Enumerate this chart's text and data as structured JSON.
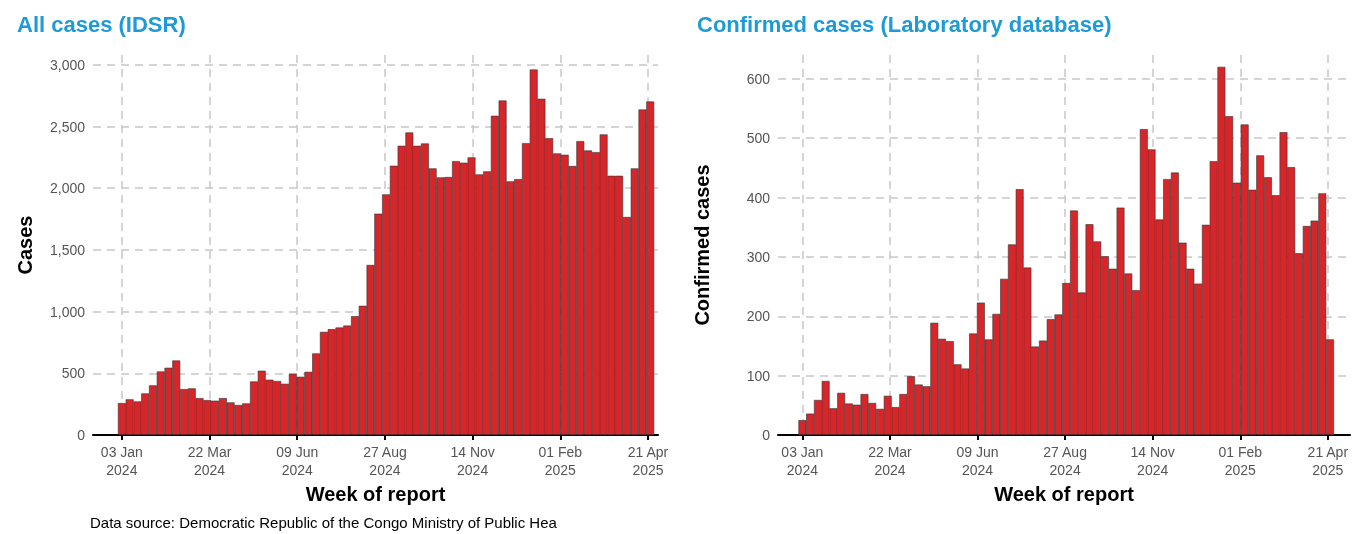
{
  "chart_data": [
    {
      "type": "bar",
      "title": "All cases (IDSR)",
      "xlabel": "Week of report",
      "ylabel": "Cases",
      "x": [
        "2024-01-03",
        "2024-01-10",
        "2024-01-17",
        "2024-01-24",
        "2024-01-31",
        "2024-02-07",
        "2024-02-14",
        "2024-02-21",
        "2024-02-28",
        "2024-03-06",
        "2024-03-13",
        "2024-03-20",
        "2024-03-27",
        "2024-04-03",
        "2024-04-10",
        "2024-04-17",
        "2024-04-24",
        "2024-05-01",
        "2024-05-08",
        "2024-05-15",
        "2024-05-22",
        "2024-05-29",
        "2024-06-05",
        "2024-06-12",
        "2024-06-19",
        "2024-06-26",
        "2024-07-03",
        "2024-07-10",
        "2024-07-17",
        "2024-07-24",
        "2024-07-31",
        "2024-08-07",
        "2024-08-14",
        "2024-08-21",
        "2024-08-28",
        "2024-09-04",
        "2024-09-11",
        "2024-09-18",
        "2024-09-25",
        "2024-10-02",
        "2024-10-09",
        "2024-10-16",
        "2024-10-23",
        "2024-10-30",
        "2024-11-06",
        "2024-11-13",
        "2024-11-20",
        "2024-11-27",
        "2024-12-04",
        "2024-12-11",
        "2024-12-18",
        "2024-12-25",
        "2025-01-01",
        "2025-01-08",
        "2025-01-15",
        "2025-01-22",
        "2025-01-29",
        "2025-02-05",
        "2025-02-12",
        "2025-02-19",
        "2025-02-26",
        "2025-03-05",
        "2025-03-12",
        "2025-03-19",
        "2025-03-26",
        "2025-04-02",
        "2025-04-09",
        "2025-04-16",
        "2025-04-23"
      ],
      "values": [
        259,
        289,
        272,
        337,
        402,
        515,
        545,
        604,
        372,
        378,
        299,
        283,
        278,
        299,
        264,
        243,
        256,
        434,
        521,
        448,
        437,
        415,
        496,
        472,
        512,
        661,
        836,
        858,
        871,
        887,
        963,
        1047,
        1378,
        1794,
        1950,
        2182,
        2344,
        2452,
        2344,
        2363,
        2161,
        2088,
        2091,
        2220,
        2207,
        2250,
        2112,
        2137,
        2587,
        2711,
        2056,
        2074,
        2366,
        2962,
        2725,
        2406,
        2282,
        2271,
        2180,
        2382,
        2306,
        2293,
        2436,
        2101,
        2101,
        1767,
        2161,
        2638,
        2703
      ],
      "color": "#d7262a",
      "xlim": [
        "2023-12-08",
        "2025-04-30"
      ],
      "xticks": [
        {
          "value": "2024-01-03",
          "label": "03 Jan\n2024"
        },
        {
          "value": "2024-03-22",
          "label": "22 Mar\n2024"
        },
        {
          "value": "2024-06-09",
          "label": "09 Jun\n2024"
        },
        {
          "value": "2024-08-27",
          "label": "27 Aug\n2024"
        },
        {
          "value": "2024-11-14",
          "label": "14 Nov\n2024"
        },
        {
          "value": "2025-02-01",
          "label": "01 Feb\n2025"
        },
        {
          "value": "2025-04-21",
          "label": "21 Apr\n2025"
        }
      ],
      "ylim": [
        0,
        3080
      ],
      "yticks": [
        0,
        500,
        {
          "value": 1000,
          "label": "1,000"
        },
        {
          "value": 1500,
          "label": "1,500"
        },
        {
          "value": 2000,
          "label": "2,000"
        },
        {
          "value": 2500,
          "label": "2,500"
        },
        {
          "value": 3000,
          "label": "3,000"
        }
      ],
      "grid": true,
      "annotations": [
        "Data source: Democratic Republic of the Congo Ministry of Public Hea"
      ]
    },
    {
      "type": "bar",
      "title": "Confirmed cases (Laboratory database)",
      "xlabel": "Week of report",
      "ylabel": "Confirmed cases",
      "x": [
        "2024-01-03",
        "2024-01-10",
        "2024-01-17",
        "2024-01-24",
        "2024-01-31",
        "2024-02-07",
        "2024-02-14",
        "2024-02-21",
        "2024-02-28",
        "2024-03-06",
        "2024-03-13",
        "2024-03-20",
        "2024-03-27",
        "2024-04-03",
        "2024-04-10",
        "2024-04-17",
        "2024-04-24",
        "2024-05-01",
        "2024-05-08",
        "2024-05-15",
        "2024-05-22",
        "2024-05-29",
        "2024-06-05",
        "2024-06-12",
        "2024-06-19",
        "2024-06-26",
        "2024-07-03",
        "2024-07-10",
        "2024-07-17",
        "2024-07-24",
        "2024-07-31",
        "2024-08-07",
        "2024-08-14",
        "2024-08-21",
        "2024-08-28",
        "2024-09-04",
        "2024-09-11",
        "2024-09-18",
        "2024-09-25",
        "2024-10-02",
        "2024-10-09",
        "2024-10-16",
        "2024-10-23",
        "2024-10-30",
        "2024-11-06",
        "2024-11-13",
        "2024-11-20",
        "2024-11-27",
        "2024-12-04",
        "2024-12-11",
        "2024-12-18",
        "2024-12-25",
        "2025-01-01",
        "2025-01-08",
        "2025-01-15",
        "2025-01-22",
        "2025-01-29",
        "2025-02-05",
        "2025-02-12",
        "2025-02-19",
        "2025-02-26",
        "2025-03-05",
        "2025-03-12",
        "2025-03-19",
        "2025-03-26",
        "2025-04-02",
        "2025-04-09",
        "2025-04-16",
        "2025-04-23"
      ],
      "values": [
        25,
        36,
        59,
        91,
        45,
        71,
        53,
        51,
        69,
        54,
        44,
        66,
        47,
        69,
        99,
        85,
        82,
        189,
        162,
        158,
        119,
        112,
        171,
        223,
        161,
        204,
        263,
        321,
        414,
        282,
        149,
        159,
        195,
        203,
        256,
        378,
        240,
        355,
        326,
        301,
        280,
        383,
        272,
        244,
        515,
        481,
        363,
        431,
        442,
        324,
        280,
        255,
        354,
        461,
        620,
        537,
        425,
        523,
        413,
        471,
        434,
        404,
        510,
        451,
        306,
        352,
        361,
        407,
        161
      ],
      "color": "#d7262a",
      "xlim": [
        "2023-12-12",
        "2025-05-11"
      ],
      "xticks": [
        {
          "value": "2024-01-03",
          "label": "03 Jan\n2024"
        },
        {
          "value": "2024-03-22",
          "label": "22 Mar\n2024"
        },
        {
          "value": "2024-06-09",
          "label": "09 Jun\n2024"
        },
        {
          "value": "2024-08-27",
          "label": "27 Aug\n2024"
        },
        {
          "value": "2024-11-14",
          "label": "14 Nov\n2024"
        },
        {
          "value": "2025-02-01",
          "label": "01 Feb\n2025"
        },
        {
          "value": "2025-04-21",
          "label": "21 Apr\n2025"
        }
      ],
      "ylim": [
        0,
        640
      ],
      "yticks": [
        0,
        100,
        200,
        300,
        400,
        500,
        600
      ],
      "grid": true
    }
  ]
}
